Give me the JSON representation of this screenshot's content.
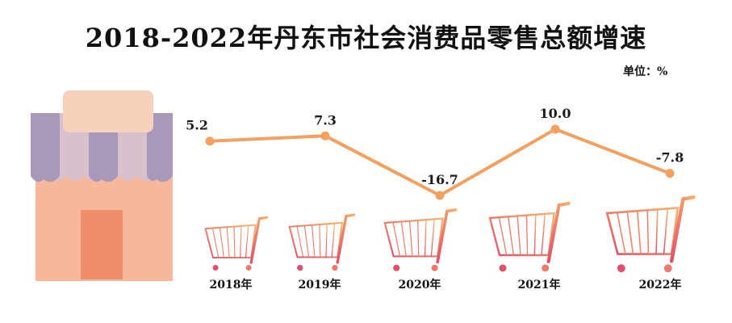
{
  "title": "2018-2022年丹东市社会消费品零售总额增速",
  "unit": "单位：%",
  "colors": {
    "line": "#f4a060",
    "cart_dark": "#e0506a",
    "cart_light": "#f6b36b",
    "awning_light": "#d8c0cc",
    "awning_dark": "#a898ba",
    "store_body": "#f6b79a",
    "store_door": "#ee8e6c",
    "store_top": "#f7d1bb"
  },
  "chart_data": {
    "type": "line",
    "title": "2018-2022年丹东市社会消费品零售总额增速",
    "unit": "%",
    "categories": [
      "2018年",
      "2019年",
      "2020年",
      "2021年",
      "2022年"
    ],
    "series": [
      {
        "values": [
          5.2,
          7.3,
          -16.7,
          10.0,
          -7.8
        ],
        "labels": [
          "5.2",
          "7.3",
          "-16.7",
          "10.0",
          "-7.8"
        ]
      }
    ],
    "ylim": [
      -16.7,
      10.0
    ],
    "grid": false,
    "legend": "none",
    "decoration": "shopping-cart-icon under each year, storefront-icon at left"
  }
}
